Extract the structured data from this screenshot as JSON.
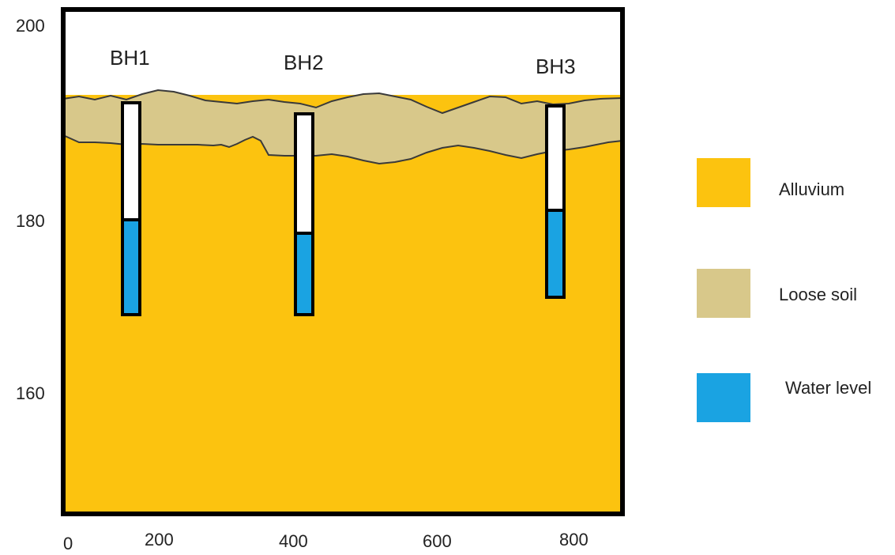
{
  "colors": {
    "alluvium": "#fcc30f",
    "loose_soil": "#d8c88a",
    "water": "#1aa3e2",
    "frame": "#000000",
    "borehole_fill": "#ffffff"
  },
  "axes": {
    "y_ticks": [
      "200",
      "180",
      "160"
    ],
    "x_ticks": [
      "0",
      "200",
      "400",
      "600",
      "800"
    ]
  },
  "boreholes": [
    {
      "label": "BH1"
    },
    {
      "label": "BH2"
    },
    {
      "label": "BH3"
    }
  ],
  "legend": [
    {
      "key": "alluvium",
      "label": "Alluvium",
      "icon": "alluvium-swatch"
    },
    {
      "key": "loose_soil",
      "label": "Loose soil",
      "icon": "loose-soil-swatch"
    },
    {
      "key": "water",
      "label": "Water level",
      "icon": "water-level-swatch"
    }
  ]
}
